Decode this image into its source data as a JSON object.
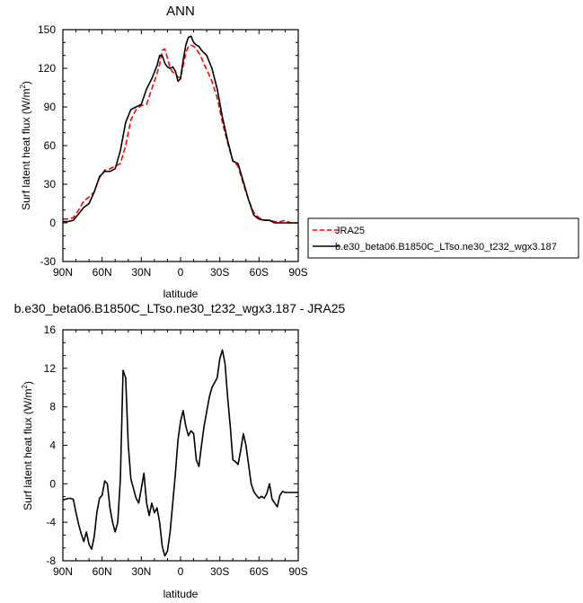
{
  "chart_data": [
    {
      "type": "line",
      "title": "ANN",
      "xlabel": "latitude",
      "ylabel": "Surf latent heat flux (W/m",
      "ylabel_superscript": "2",
      "ylabel_close": ")",
      "xlim": [
        90,
        -90
      ],
      "ylim": [
        -30,
        150
      ],
      "xticks": [
        90,
        60,
        30,
        0,
        -30,
        -60,
        -90
      ],
      "xtick_labels": [
        "90N",
        "60N",
        "30N",
        "0",
        "30S",
        "60S",
        "90S"
      ],
      "yticks": [
        -30,
        0,
        30,
        60,
        90,
        120,
        150
      ],
      "ytick_labels": [
        "-30",
        "0",
        "30",
        "60",
        "90",
        "120",
        "150"
      ],
      "grid": false,
      "legend": "outside-right",
      "series": [
        {
          "name": "JRA25",
          "color": "#ff0000",
          "dash": "dashed",
          "x": [
            90,
            86,
            82,
            78,
            74,
            70,
            66,
            62,
            58,
            54,
            50,
            46,
            42,
            38,
            34,
            30,
            26,
            22,
            18,
            16,
            14,
            12,
            10,
            8,
            6,
            4,
            2,
            0,
            -2,
            -4,
            -6,
            -8,
            -10,
            -12,
            -14,
            -16,
            -18,
            -20,
            -24,
            -28,
            -32,
            -36,
            -40,
            -44,
            -48,
            -52,
            -56,
            -60,
            -64,
            -68,
            -72,
            -76,
            -80,
            -84,
            -88,
            -90
          ],
          "y": [
            3,
            3,
            4,
            10,
            17,
            20,
            24,
            35,
            41,
            42,
            44,
            46,
            60,
            80,
            88,
            91,
            92,
            104,
            116,
            123,
            134,
            135,
            128,
            120,
            117,
            116,
            113,
            113,
            122,
            132,
            137,
            138,
            137,
            135,
            132,
            128,
            123,
            119,
            110,
            97,
            78,
            62,
            48,
            44,
            30,
            18,
            8,
            4,
            2,
            2,
            1,
            1,
            2,
            0,
            0,
            0
          ]
        },
        {
          "name": "b.e30_beta06.B1850C_LTso.ne30_t232_wgx3.187",
          "color": "#000000",
          "dash": "solid",
          "x": [
            90,
            86,
            82,
            78,
            74,
            70,
            66,
            62,
            58,
            54,
            50,
            46,
            42,
            38,
            34,
            30,
            26,
            22,
            18,
            16,
            14,
            12,
            10,
            8,
            6,
            4,
            2,
            0,
            -2,
            -4,
            -6,
            -8,
            -10,
            -12,
            -14,
            -16,
            -18,
            -20,
            -24,
            -28,
            -32,
            -36,
            -40,
            -44,
            -48,
            -52,
            -56,
            -60,
            -64,
            -68,
            -72,
            -76,
            -80,
            -84,
            -88,
            -90
          ],
          "y": [
            1,
            1,
            2,
            7,
            12,
            15,
            24,
            36,
            40,
            40,
            42,
            56,
            78,
            88,
            90,
            92,
            104,
            112,
            122,
            130,
            130,
            124,
            121,
            120,
            121,
            118,
            110,
            112,
            126,
            138,
            144,
            145,
            140,
            138,
            137,
            134,
            132,
            130,
            120,
            104,
            82,
            64,
            48,
            46,
            32,
            18,
            6,
            3,
            2,
            2,
            0,
            0,
            0,
            0,
            0,
            0
          ]
        }
      ]
    },
    {
      "type": "line",
      "title": "b.e30_beta06.B1850C_LTso.ne30_t232_wgx3.187 - JRA25",
      "xlabel": "latitude",
      "ylabel": "Surf latent heat flux (W/m",
      "ylabel_superscript": "2",
      "ylabel_close": ")",
      "xlim": [
        90,
        -90
      ],
      "ylim": [
        -8,
        16
      ],
      "xticks": [
        90,
        60,
        30,
        0,
        -30,
        -60,
        -90
      ],
      "xtick_labels": [
        "90N",
        "60N",
        "30N",
        "0",
        "30S",
        "60S",
        "90S"
      ],
      "yticks": [
        -8,
        -4,
        0,
        4,
        8,
        12,
        16
      ],
      "ytick_labels": [
        "-8",
        "-4",
        "0",
        "4",
        "8",
        "12",
        "16"
      ],
      "grid": false,
      "series": [
        {
          "color": "#000000",
          "dash": "solid",
          "x": [
            90,
            88,
            85,
            82,
            80,
            78,
            76,
            74,
            72,
            70,
            68,
            66,
            64,
            62,
            60,
            58,
            56,
            54,
            52,
            50,
            48,
            46,
            44,
            42,
            40,
            38,
            36,
            34,
            32,
            30,
            28,
            26,
            24,
            22,
            20,
            18,
            16,
            14,
            12,
            10,
            8,
            6,
            4,
            2,
            0,
            -2,
            -4,
            -6,
            -8,
            -10,
            -12,
            -14,
            -16,
            -18,
            -20,
            -22,
            -24,
            -26,
            -28,
            -30,
            -32,
            -34,
            -36,
            -38,
            -40,
            -42,
            -44,
            -46,
            -48,
            -50,
            -52,
            -54,
            -56,
            -58,
            -60,
            -62,
            -64,
            -66,
            -68,
            -70,
            -72,
            -74,
            -76,
            -78,
            -80,
            -82,
            -84,
            -86,
            -88,
            -90
          ],
          "y": [
            -1.7,
            -1.6,
            -1.5,
            -1.6,
            -3,
            -4.2,
            -5.2,
            -6,
            -5,
            -6.3,
            -6.8,
            -5.5,
            -3,
            -1.5,
            -1.2,
            0.3,
            0,
            -2.5,
            -4,
            -5,
            -4,
            0.5,
            11.8,
            11,
            4,
            0.5,
            -0.5,
            -1.5,
            -2,
            -0.5,
            1.1,
            -2,
            -3.3,
            -2,
            -3,
            -2.5,
            -4,
            -6.5,
            -7.5,
            -7,
            -5,
            -2,
            1,
            4.5,
            6.5,
            7.6,
            6,
            5,
            5.5,
            5.2,
            2.5,
            1.8,
            4,
            6,
            7.5,
            9,
            10,
            10.5,
            11,
            13,
            13.9,
            12.5,
            9,
            6,
            2.5,
            2.3,
            2,
            3.5,
            5.2,
            4,
            2,
            0,
            -0.8,
            -1.2,
            -1.5,
            -1.3,
            -1.5,
            -1,
            0,
            -1.6,
            -2,
            -2.4,
            -1.2,
            -0.8,
            -0.9,
            -0.9,
            -0.9,
            -0.9,
            -0.9,
            -0.9
          ]
        }
      ]
    }
  ]
}
